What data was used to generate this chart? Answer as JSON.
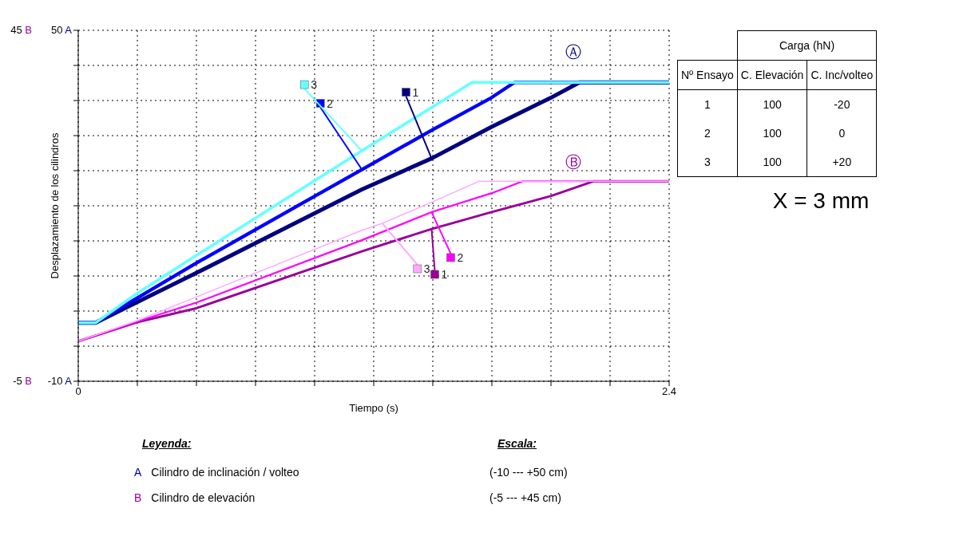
{
  "chart_data": [
    {
      "type": "line",
      "xlabel": "Tiempo (s)",
      "ylabel": "Desplazamiento de los cilindros",
      "xlim": [
        0,
        2.4
      ],
      "xticks": [
        0,
        {
          "value": 0.24,
          "label": null
        },
        {
          "value": 0.48,
          "label": null
        },
        {
          "value": 0.72,
          "label": null
        },
        {
          "value": 0.96,
          "label": null
        },
        {
          "value": 1.2,
          "label": null
        },
        {
          "value": 1.44,
          "label": null
        },
        {
          "value": 1.68,
          "label": null
        },
        {
          "value": 1.92,
          "label": null
        },
        {
          "value": 2.16,
          "label": null
        },
        2.4
      ],
      "ylim": [
        -10,
        50
      ],
      "yticks": [
        {
          "value": -10,
          "label": "-10 A"
        },
        {
          "value": -4,
          "label": null
        },
        {
          "value": 2,
          "label": null
        },
        {
          "value": 8,
          "label": null
        },
        {
          "value": 14,
          "label": null
        },
        {
          "value": 20,
          "label": null
        },
        {
          "value": 26,
          "label": null
        },
        {
          "value": 32,
          "label": null
        },
        {
          "value": 38,
          "label": null
        },
        {
          "value": 44,
          "label": null
        },
        {
          "value": 50,
          "label": "50 A"
        }
      ],
      "y2lim": [
        -5,
        45
      ],
      "y2ticks": [
        {
          "value": -5,
          "label": "-5 B"
        },
        {
          "value": 45,
          "label": "45 B"
        }
      ],
      "grid": true,
      "legend": "center",
      "marker": "none",
      "line_style": "solid",
      "annotations": [
        "Ⓐ",
        "Ⓑ",
        "Leyenda:",
        "Escala:",
        "A",
        "Cilindro de inclinación / volteo",
        "(-10 --- +50 cm)",
        "B",
        "Cilindro de elevación",
        "(-5 --- +45 cm)"
      ],
      "series": [
        {
          "name": "1",
          "color": "#000080",
          "axis": "y",
          "x": [
            0,
            0.07,
            0.238,
            0.479,
            1.152,
            1.435,
            1.679,
            1.921,
            2.036,
            2.4
          ],
          "values": [
            0,
            0,
            3.5,
            8.5,
            22.8,
            28.1,
            33.5,
            38.5,
            41.1,
            41.1
          ]
        },
        {
          "name": "2",
          "color": "#0000ff",
          "axis": "y",
          "x": [
            0,
            0.07,
            0.238,
            0.479,
            1.152,
            1.435,
            1.679,
            1.772,
            2.4
          ],
          "values": [
            0,
            0,
            4.2,
            10.2,
            26.2,
            32.9,
            38.5,
            41.1,
            41.1
          ]
        },
        {
          "name": "3",
          "color": "#66ffff",
          "axis": "y",
          "x": [
            0,
            0.07,
            0.238,
            0.479,
            1.152,
            1.435,
            1.6,
            2.4
          ],
          "values": [
            0,
            0,
            5.0,
            11.5,
            29.4,
            36.8,
            41.1,
            41.1
          ]
        },
        {
          "name": "1",
          "color": "#990099",
          "axis": "y2",
          "x": [
            0,
            0.238,
            0.479,
            1.152,
            1.435,
            1.679,
            1.921,
            2.094,
            2.4
          ],
          "values": [
            0.7,
            3.4,
            5.4,
            13.5,
            16.7,
            19.1,
            21.4,
            23.5,
            23.5
          ]
        },
        {
          "name": "2",
          "color": "#ff00ff",
          "axis": "y2",
          "x": [
            0,
            0.238,
            0.479,
            1.152,
            1.435,
            1.679,
            1.805,
            2.4
          ],
          "values": [
            0.7,
            3.5,
            6.2,
            15.1,
            19.1,
            21.8,
            23.5,
            23.5
          ]
        },
        {
          "name": "3",
          "color": "#ffaaff",
          "axis": "y2",
          "x": [
            0,
            0.238,
            0.479,
            1.152,
            1.235,
            1.435,
            1.628,
            2.4
          ],
          "values": [
            0.7,
            3.6,
            7.0,
            16.5,
            17.5,
            20.5,
            23.5,
            23.5
          ]
        }
      ]
    },
    {
      "type": "other",
      "annotations": [
        "Carga (hN)",
        "Nº Ensayo",
        "C. Elevación",
        "C. Inc/volteo",
        "1",
        "100",
        "-20",
        "2",
        "100",
        "0",
        "3",
        "100",
        "+20",
        "X = 3 mm"
      ]
    }
  ]
}
